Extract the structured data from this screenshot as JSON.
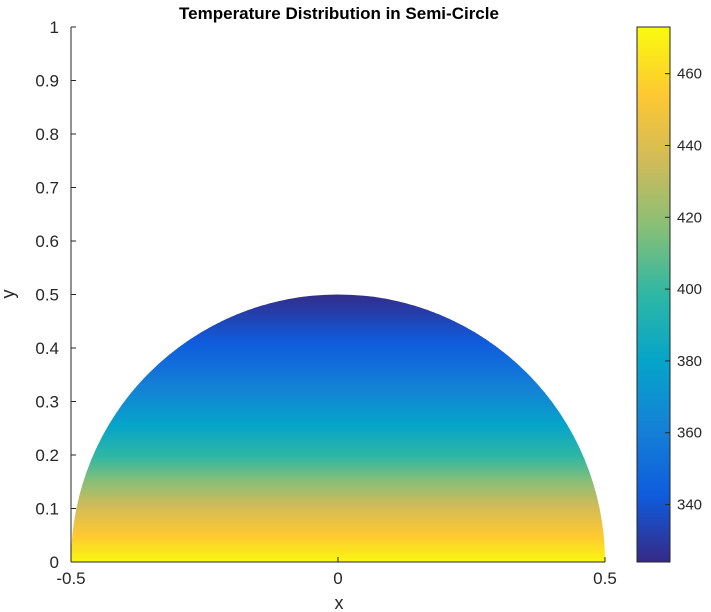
{
  "chart_data": {
    "type": "heatmap",
    "title": "Temperature Distribution in Semi-Circle",
    "xlabel": "x",
    "ylabel": "y",
    "xlim": [
      -0.5,
      0.5
    ],
    "ylim": [
      0,
      1
    ],
    "x_ticks": [
      -0.5,
      0,
      0.5
    ],
    "x_tick_labels": [
      "-0.5",
      "0",
      "0.5"
    ],
    "y_ticks": [
      0,
      0.1,
      0.2,
      0.3,
      0.4,
      0.5,
      0.6,
      0.7,
      0.8,
      0.9,
      1
    ],
    "y_tick_labels": [
      "0",
      "0.1",
      "0.2",
      "0.3",
      "0.4",
      "0.5",
      "0.6",
      "0.7",
      "0.8",
      "0.9",
      "1"
    ],
    "grid": false,
    "domain": {
      "shape": "semi-circle",
      "center": [
        0,
        0
      ],
      "radius": 0.5
    },
    "temperature_profile": {
      "y": [
        0.0,
        0.02,
        0.05,
        0.08,
        0.1,
        0.12,
        0.15,
        0.2,
        0.25,
        0.3,
        0.35,
        0.4,
        0.45,
        0.5
      ],
      "value": [
        472,
        465,
        455,
        445,
        438,
        430,
        418,
        398,
        382,
        368,
        356,
        345,
        335,
        325
      ]
    },
    "colorbar": {
      "colormap": "parula",
      "range": [
        324,
        473
      ],
      "ticks": [
        340,
        360,
        380,
        400,
        420,
        440,
        460
      ],
      "tick_labels": [
        "340",
        "360",
        "380",
        "400",
        "420",
        "440",
        "460"
      ],
      "colors": [
        "#352a87",
        "#0f5cdd",
        "#1481d6",
        "#06a4ca",
        "#2eb7a4",
        "#87bf77",
        "#d1bb59",
        "#fec832",
        "#f9fb0e"
      ]
    }
  }
}
